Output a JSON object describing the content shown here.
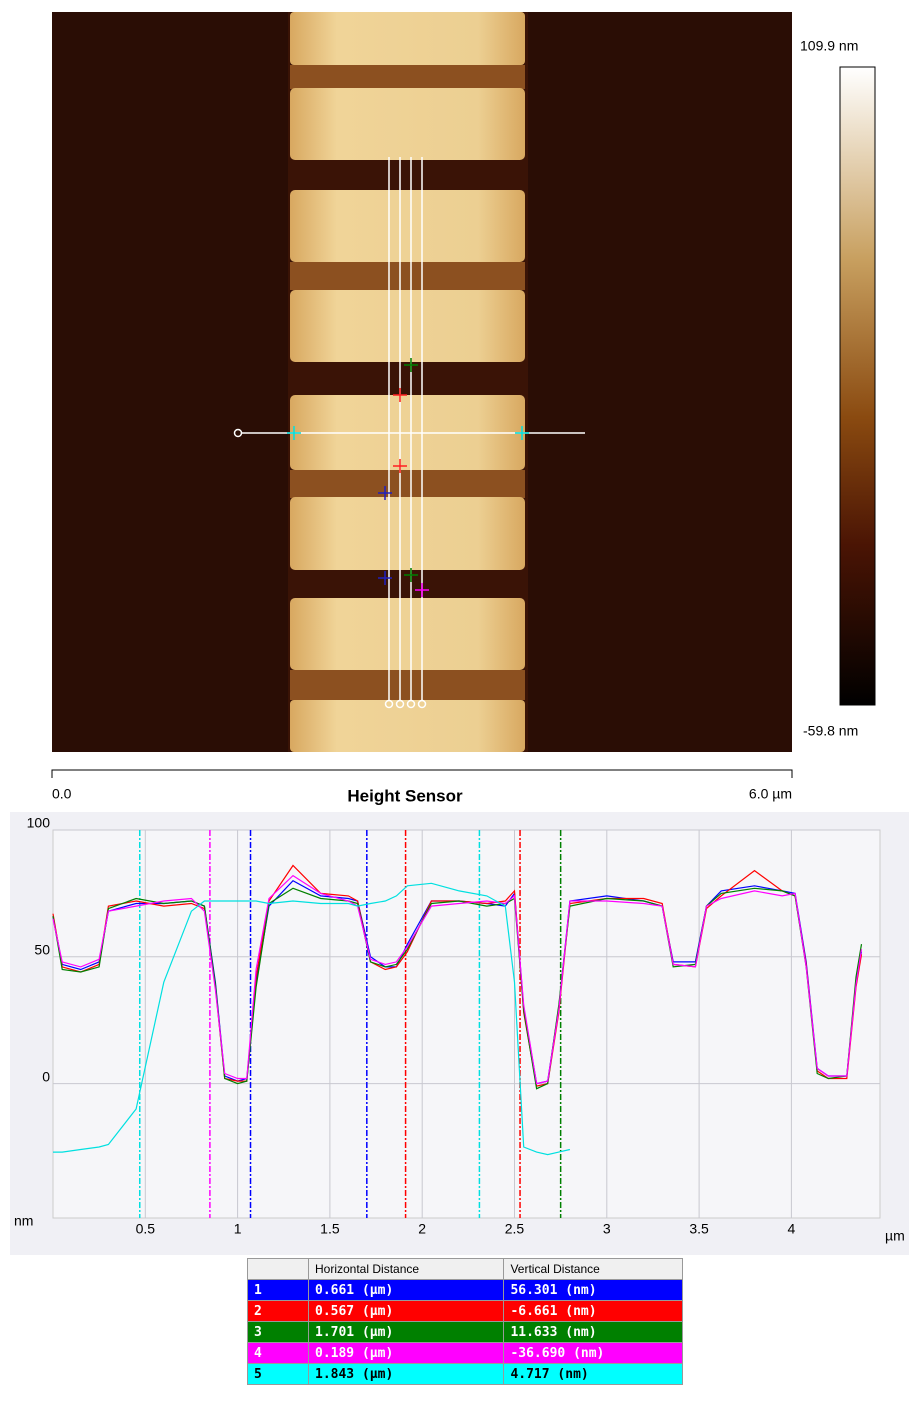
{
  "image": {
    "max_label": "109.9 nm",
    "min_label": "-59.8 nm",
    "scale_start": "0.0",
    "scale_end": "6.0 µm",
    "title": "Height Sensor"
  },
  "chart_data": {
    "type": "line",
    "xlabel": "µm",
    "ylabel": "nm",
    "x": [
      0,
      0.05,
      0.15,
      0.25,
      0.3,
      0.45,
      0.6,
      0.75,
      0.82,
      0.88,
      0.93,
      1.0,
      1.05,
      1.1,
      1.17,
      1.3,
      1.45,
      1.6,
      1.65,
      1.72,
      1.8,
      1.86,
      1.92,
      2.05,
      2.2,
      2.35,
      2.45,
      2.5,
      2.55,
      2.62,
      2.68,
      2.74,
      2.8,
      3.0,
      3.2,
      3.3,
      3.36,
      3.48,
      3.54,
      3.62,
      3.8,
      3.95,
      4.02,
      4.08,
      4.14,
      4.2,
      4.3,
      4.35,
      4.38
    ],
    "series": [
      {
        "name": "1",
        "color": "#0000ff",
        "values": [
          66,
          47,
          45,
          48,
          68,
          71,
          71,
          72,
          70,
          40,
          3,
          1,
          2,
          40,
          70,
          80,
          74,
          73,
          72,
          50,
          46,
          46,
          55,
          72,
          72,
          71,
          70,
          75,
          30,
          0,
          1,
          30,
          72,
          74,
          72,
          70,
          48,
          48,
          70,
          76,
          78,
          76,
          75,
          48,
          6,
          3,
          3,
          40,
          52
        ]
      },
      {
        "name": "2",
        "color": "#ff0000",
        "values": [
          67,
          46,
          44,
          47,
          70,
          72,
          70,
          71,
          69,
          38,
          2,
          1,
          1,
          42,
          72,
          86,
          75,
          74,
          72,
          48,
          45,
          46,
          52,
          72,
          72,
          71,
          72,
          76,
          28,
          -1,
          0,
          28,
          71,
          73,
          73,
          71,
          47,
          46,
          69,
          74,
          84,
          76,
          74,
          47,
          5,
          2,
          2,
          38,
          51
        ]
      },
      {
        "name": "3",
        "color": "#008000",
        "values": [
          66,
          45,
          44,
          46,
          69,
          73,
          71,
          72,
          70,
          39,
          2,
          0,
          1,
          38,
          71,
          77,
          73,
          72,
          71,
          48,
          46,
          47,
          53,
          71,
          72,
          70,
          71,
          73,
          29,
          -2,
          0,
          31,
          70,
          73,
          72,
          70,
          46,
          47,
          70,
          75,
          77,
          76,
          74,
          46,
          4,
          2,
          3,
          42,
          55
        ]
      },
      {
        "name": "4",
        "color": "#ff00ff",
        "values": [
          65,
          48,
          46,
          49,
          68,
          70,
          72,
          73,
          68,
          37,
          4,
          2,
          2,
          45,
          73,
          82,
          75,
          72,
          70,
          49,
          47,
          48,
          54,
          70,
          71,
          72,
          71,
          74,
          31,
          0,
          1,
          29,
          72,
          72,
          71,
          70,
          47,
          46,
          70,
          73,
          76,
          74,
          75,
          46,
          6,
          3,
          3,
          39,
          53
        ]
      },
      {
        "name": "5",
        "color": "#00e0e0",
        "values": [
          -27,
          -27,
          -26,
          -25,
          -24,
          -10,
          40,
          68,
          72,
          72,
          72,
          72,
          72,
          72,
          71,
          72,
          71,
          71,
          70,
          71,
          72,
          74,
          78,
          79,
          76,
          74,
          70,
          40,
          -25,
          -27,
          -28,
          -27,
          -26,
          null,
          null,
          null,
          null,
          null,
          null,
          null,
          null,
          null,
          null,
          null,
          null,
          null,
          null,
          null,
          null
        ]
      }
    ],
    "cursors": [
      {
        "x": 0.47,
        "color": "#00e0e0"
      },
      {
        "x": 0.85,
        "color": "#ff00ff"
      },
      {
        "x": 1.07,
        "color": "#0000ff"
      },
      {
        "x": 1.7,
        "color": "#0000ff"
      },
      {
        "x": 1.91,
        "color": "#ff0000"
      },
      {
        "x": 2.31,
        "color": "#00e0e0"
      },
      {
        "x": 2.53,
        "color": "#ff0000"
      },
      {
        "x": 2.75,
        "color": "#008000"
      }
    ],
    "xlim": [
      0,
      4.48
    ],
    "ylim": [
      -53,
      100
    ],
    "xticks": [
      0.5,
      1,
      1.5,
      2,
      2.5,
      3,
      3.5,
      4
    ],
    "yticks": [
      0,
      50,
      100
    ],
    "grid": true
  },
  "table": {
    "headers": [
      "Horizontal Distance",
      "Vertical Distance"
    ],
    "rows": [
      {
        "cells": [
          "1",
          "0.661 (µm)",
          "56.301 (nm)"
        ],
        "color": "#0000ff",
        "text_color": "#ffffff"
      },
      {
        "cells": [
          "2",
          "0.567 (µm)",
          "-6.661 (nm)"
        ],
        "color": "#ff0000",
        "text_color": "#ffffff"
      },
      {
        "cells": [
          "3",
          "1.701 (µm)",
          "11.633 (nm)"
        ],
        "color": "#008000",
        "text_color": "#ffffff"
      },
      {
        "cells": [
          "4",
          "0.189 (µm)",
          "-36.690 (nm)"
        ],
        "color": "#ff00ff",
        "text_color": "#ffffff"
      },
      {
        "cells": [
          "5",
          "1.843 (µm)",
          "4.717 (nm)"
        ],
        "color": "#00ffff",
        "text_color": "#000000"
      }
    ]
  }
}
